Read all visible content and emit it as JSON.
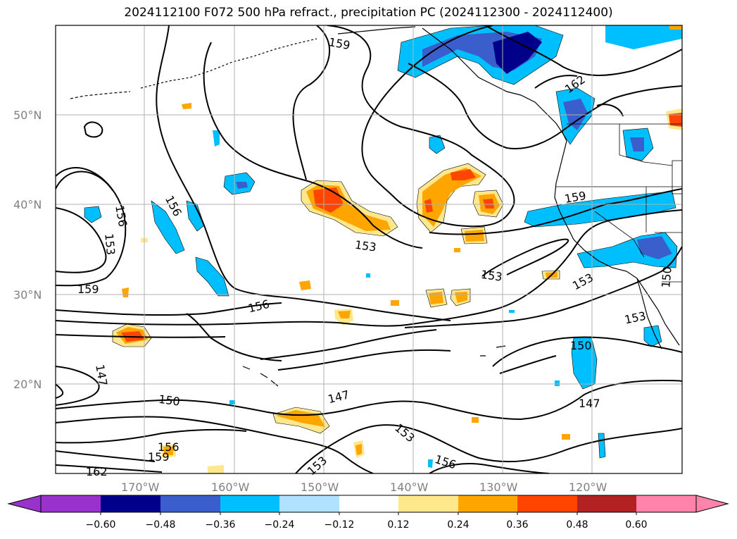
{
  "title": "2024112100 F072 500 hPa refract., precipitation PC (2024112300 - 2024112400)",
  "lat_labels": [
    "50°N",
    "40°N",
    "30°N",
    "20°N"
  ],
  "lon_labels": [
    "170°W",
    "160°W",
    "150°W",
    "140°W",
    "130°W",
    "120°W"
  ],
  "colorbar": {
    "ticks": [
      "−0.60",
      "−0.48",
      "−0.36",
      "−0.24",
      "−0.12",
      "0.12",
      "0.24",
      "0.36",
      "0.48",
      "0.60"
    ],
    "colors": [
      "#9932cc",
      "#00008b",
      "#3a5fcd",
      "#00bfff",
      "#b0e2ff",
      "#ffffff",
      "#ffe78c",
      "#ffa500",
      "#ff4500",
      "#b22222",
      "#ff83aa"
    ]
  },
  "contour_labels": [
    {
      "text": "159",
      "key": "c159a"
    },
    {
      "text": "162",
      "key": "c162a"
    },
    {
      "text": "156",
      "key": "c156a"
    },
    {
      "text": "156",
      "key": "c156b"
    },
    {
      "text": "153",
      "key": "c153a"
    },
    {
      "text": "159",
      "key": "c159b"
    },
    {
      "text": "159",
      "key": "c159c"
    },
    {
      "text": "153",
      "key": "c153b"
    },
    {
      "text": "153",
      "key": "c153c"
    },
    {
      "text": "153",
      "key": "c153d"
    },
    {
      "text": "156",
      "key": "c156c"
    },
    {
      "text": "150",
      "key": "c150a"
    },
    {
      "text": "153",
      "key": "c153e"
    },
    {
      "text": "150",
      "key": "c150b"
    },
    {
      "text": "147",
      "key": "c147a"
    },
    {
      "text": "150",
      "key": "c150c"
    },
    {
      "text": "147",
      "key": "c147b"
    },
    {
      "text": "147",
      "key": "c147c"
    },
    {
      "text": "153",
      "key": "c153f"
    },
    {
      "text": "153",
      "key": "c153g"
    },
    {
      "text": "156",
      "key": "c156d"
    },
    {
      "text": "156",
      "key": "c156e"
    },
    {
      "text": "159",
      "key": "c159d"
    },
    {
      "text": "162",
      "key": "c162b"
    }
  ]
}
